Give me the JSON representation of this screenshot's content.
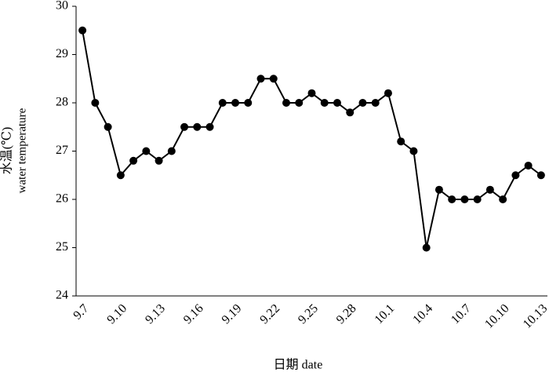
{
  "chart_data": {
    "type": "line",
    "x_label": "日期 date",
    "y_label": [
      "水温(℃)",
      "water temperature"
    ],
    "categories": [
      "9.7",
      null,
      null,
      "9.10",
      null,
      null,
      "9.13",
      null,
      null,
      "9.16",
      null,
      null,
      "9.19",
      null,
      null,
      "9.22",
      null,
      null,
      "9.25",
      null,
      null,
      "9.28",
      null,
      null,
      "10.1",
      null,
      null,
      "10.4",
      null,
      null,
      "10.7",
      null,
      null,
      "10.10",
      null,
      null,
      "10.13"
    ],
    "series": [
      {
        "color": "#000000",
        "values": [
          29.5,
          28,
          27.5,
          26.5,
          26.8,
          27,
          26.8,
          27,
          27.5,
          27.5,
          27.5,
          28,
          28,
          28,
          28.5,
          28.5,
          28,
          28,
          28.2,
          28,
          28,
          27.8,
          28,
          28,
          28.2,
          27.2,
          27,
          25,
          26.2,
          26,
          26,
          26,
          26.2,
          26,
          26.5,
          26.7,
          26.5
        ]
      }
    ],
    "ylim": [
      24,
      30
    ],
    "yticks": [
      24,
      25,
      26,
      27,
      28,
      29,
      30
    ],
    "grid": false
  }
}
